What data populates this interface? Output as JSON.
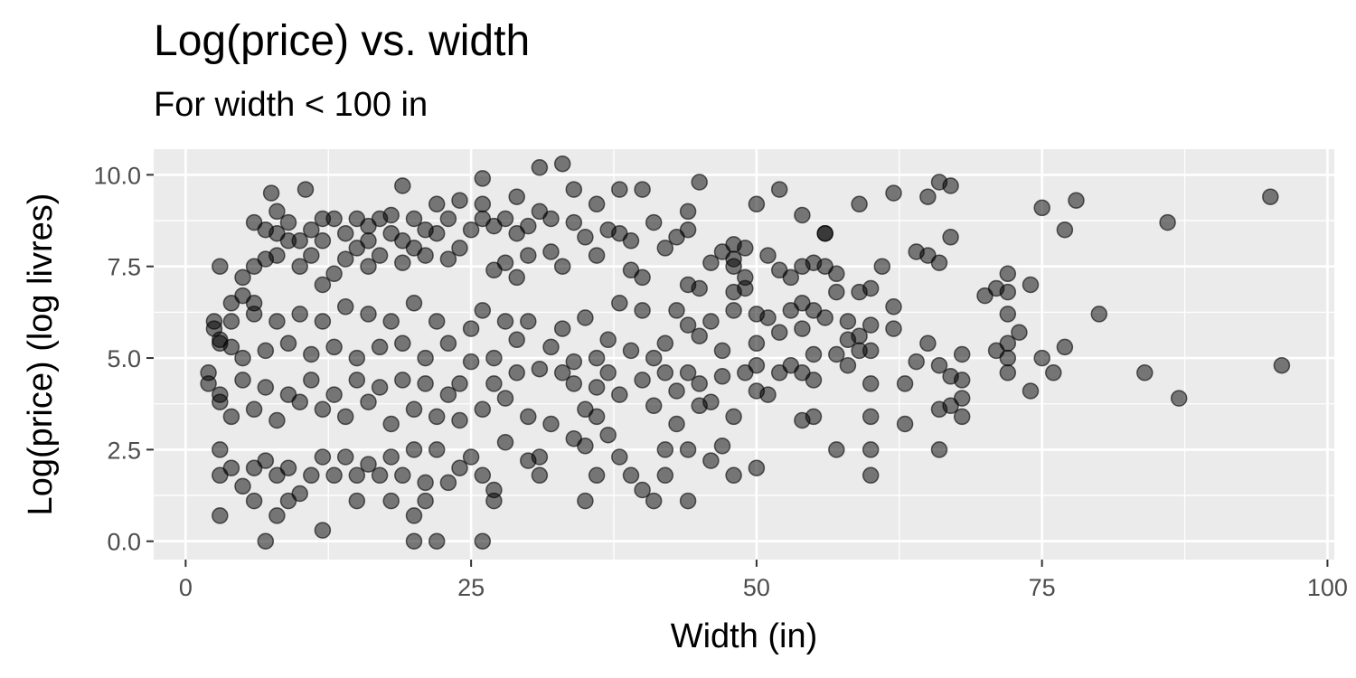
{
  "chart_data": {
    "type": "scatter",
    "title": "Log(price) vs. width",
    "subtitle": "For width < 100 in",
    "xlabel": "Width (in)",
    "ylabel": "Log(price) (log livres)",
    "xlim": [
      -2.8,
      100.6
    ],
    "ylim": [
      -0.5,
      10.7
    ],
    "x_ticks": [
      0,
      25,
      50,
      75,
      100
    ],
    "x_tick_labels": [
      "0",
      "25",
      "50",
      "75",
      "100"
    ],
    "y_ticks": [
      0.0,
      2.5,
      5.0,
      7.5,
      10.0
    ],
    "y_tick_labels": [
      "0.0",
      "2.5",
      "5.0",
      "7.5",
      "10.0"
    ],
    "grid": true,
    "panel_background": "#ebebeb",
    "grid_color": "#ffffff",
    "point_color": "#000000",
    "point_alpha": 0.5,
    "points": [
      [
        3,
        0.7
      ],
      [
        7,
        0.0
      ],
      [
        12,
        0.3
      ],
      [
        20,
        0.7
      ],
      [
        20,
        0.0
      ],
      [
        22,
        0.0
      ],
      [
        26,
        0.0
      ],
      [
        8,
        0.7
      ],
      [
        9,
        1.1
      ],
      [
        6,
        1.1
      ],
      [
        15,
        1.1
      ],
      [
        18,
        1.1
      ],
      [
        21,
        1.1
      ],
      [
        27,
        1.1
      ],
      [
        35,
        1.1
      ],
      [
        44,
        1.1
      ],
      [
        7.5,
        9.5
      ],
      [
        8,
        8.4
      ],
      [
        19,
        9.7
      ],
      [
        33,
        10.3
      ],
      [
        31,
        10.2
      ],
      [
        26,
        9.9
      ],
      [
        10.5,
        9.6
      ],
      [
        3,
        7.5
      ],
      [
        6,
        8.7
      ],
      [
        12,
        8.8
      ],
      [
        16,
        8.6
      ],
      [
        22,
        9.2
      ],
      [
        29,
        9.4
      ],
      [
        34,
        9.6
      ],
      [
        36,
        9.2
      ],
      [
        38,
        9.6
      ],
      [
        40,
        9.6
      ],
      [
        41,
        8.7
      ],
      [
        45,
        9.8
      ],
      [
        44,
        9.0
      ],
      [
        48,
        8.1
      ],
      [
        49,
        8.0
      ],
      [
        50,
        9.2
      ],
      [
        52,
        9.6
      ],
      [
        54,
        8.9
      ],
      [
        56,
        8.4
      ],
      [
        59,
        9.2
      ],
      [
        62,
        9.5
      ],
      [
        65,
        9.4
      ],
      [
        66,
        9.8
      ],
      [
        67,
        9.7
      ],
      [
        72,
        7.3
      ],
      [
        74,
        7.0
      ],
      [
        75,
        9.1
      ],
      [
        77,
        8.5
      ],
      [
        78,
        9.3
      ],
      [
        80,
        6.2
      ],
      [
        86,
        8.7
      ],
      [
        95,
        9.4
      ],
      [
        84,
        4.6
      ],
      [
        87,
        3.9
      ],
      [
        96,
        4.8
      ],
      [
        72,
        4.6
      ],
      [
        74,
        4.1
      ],
      [
        75,
        5.0
      ],
      [
        76,
        4.6
      ],
      [
        77,
        5.3
      ],
      [
        71,
        5.2
      ],
      [
        70,
        6.7
      ],
      [
        68,
        5.1
      ],
      [
        67,
        4.5
      ],
      [
        66,
        3.6
      ],
      [
        66,
        2.5
      ],
      [
        63,
        3.2
      ],
      [
        63,
        4.3
      ],
      [
        60,
        4.3
      ],
      [
        60,
        1.8
      ],
      [
        60,
        2.5
      ],
      [
        60,
        3.4
      ],
      [
        58,
        4.8
      ],
      [
        57,
        6.8
      ],
      [
        57,
        2.5
      ],
      [
        58,
        6.0
      ],
      [
        59,
        5.2
      ],
      [
        56,
        8.4
      ],
      [
        55,
        6.3
      ],
      [
        54,
        3.3
      ],
      [
        55,
        3.4
      ],
      [
        54,
        4.6
      ],
      [
        53,
        4.8
      ],
      [
        52,
        5.7
      ],
      [
        51,
        6.1
      ],
      [
        50,
        2.0
      ],
      [
        48,
        1.8
      ],
      [
        50,
        4.1
      ],
      [
        46,
        2.2
      ],
      [
        47,
        2.6
      ],
      [
        44,
        2.5
      ],
      [
        43,
        3.2
      ],
      [
        42,
        2.5
      ],
      [
        42,
        1.8
      ],
      [
        45,
        3.7
      ],
      [
        41,
        1.1
      ],
      [
        40,
        1.4
      ],
      [
        39,
        1.8
      ],
      [
        38,
        2.3
      ],
      [
        37,
        2.9
      ],
      [
        36,
        1.8
      ],
      [
        35,
        2.6
      ],
      [
        34,
        2.8
      ],
      [
        31,
        2.3
      ],
      [
        31,
        1.8
      ],
      [
        30,
        2.2
      ],
      [
        28,
        2.7
      ],
      [
        27,
        1.4
      ],
      [
        26,
        1.8
      ],
      [
        25,
        2.3
      ],
      [
        24,
        2.0
      ],
      [
        23,
        1.6
      ],
      [
        22,
        2.5
      ],
      [
        21,
        1.6
      ],
      [
        20,
        2.5
      ],
      [
        19,
        1.8
      ],
      [
        18,
        2.3
      ],
      [
        17,
        1.8
      ],
      [
        16,
        2.1
      ],
      [
        15,
        1.8
      ],
      [
        14,
        2.3
      ],
      [
        13,
        1.8
      ],
      [
        12,
        2.3
      ],
      [
        11,
        1.8
      ],
      [
        10,
        1.3
      ],
      [
        9,
        2.0
      ],
      [
        8,
        1.8
      ],
      [
        7,
        2.2
      ],
      [
        6,
        2.0
      ],
      [
        5,
        1.5
      ],
      [
        4,
        2.0
      ],
      [
        3,
        1.8
      ],
      [
        3,
        2.5
      ],
      [
        2,
        4.3
      ],
      [
        2,
        4.6
      ],
      [
        2.5,
        6.0
      ],
      [
        3,
        5.5
      ],
      [
        2.5,
        5.8
      ],
      [
        4,
        5.3
      ],
      [
        3,
        3.8
      ],
      [
        4,
        6.5
      ],
      [
        5,
        6.7
      ],
      [
        5,
        7.2
      ],
      [
        6,
        6.5
      ],
      [
        6,
        7.5
      ],
      [
        7,
        7.7
      ],
      [
        7,
        8.5
      ],
      [
        8,
        7.8
      ],
      [
        8,
        9.0
      ],
      [
        9,
        8.2
      ],
      [
        9,
        8.7
      ],
      [
        10,
        7.5
      ],
      [
        10,
        8.2
      ],
      [
        11,
        8.5
      ],
      [
        11,
        7.8
      ],
      [
        12,
        7.0
      ],
      [
        12,
        8.2
      ],
      [
        13,
        8.8
      ],
      [
        13,
        7.3
      ],
      [
        14,
        8.4
      ],
      [
        14,
        7.7
      ],
      [
        15,
        8.0
      ],
      [
        15,
        8.8
      ],
      [
        16,
        7.5
      ],
      [
        16,
        8.2
      ],
      [
        17,
        8.8
      ],
      [
        17,
        7.8
      ],
      [
        18,
        8.4
      ],
      [
        18,
        8.9
      ],
      [
        19,
        7.6
      ],
      [
        19,
        8.2
      ],
      [
        20,
        8.0
      ],
      [
        20,
        8.8
      ],
      [
        21,
        7.8
      ],
      [
        21,
        8.5
      ],
      [
        22,
        8.4
      ],
      [
        23,
        7.7
      ],
      [
        23,
        8.8
      ],
      [
        24,
        8.0
      ],
      [
        24,
        9.3
      ],
      [
        25,
        8.5
      ],
      [
        26,
        8.8
      ],
      [
        26,
        9.2
      ],
      [
        27,
        7.4
      ],
      [
        27,
        8.6
      ],
      [
        28,
        8.8
      ],
      [
        28,
        7.6
      ],
      [
        29,
        8.4
      ],
      [
        29,
        7.2
      ],
      [
        30,
        8.6
      ],
      [
        30,
        7.8
      ],
      [
        31,
        9.0
      ],
      [
        32,
        7.9
      ],
      [
        32,
        8.8
      ],
      [
        33,
        7.5
      ],
      [
        34,
        8.7
      ],
      [
        35,
        8.3
      ],
      [
        36,
        7.8
      ],
      [
        37,
        8.5
      ],
      [
        38,
        8.4
      ],
      [
        39,
        8.2
      ],
      [
        39,
        7.4
      ],
      [
        40,
        7.2
      ],
      [
        42,
        8.0
      ],
      [
        43,
        8.3
      ],
      [
        44,
        8.5
      ],
      [
        45,
        6.9
      ],
      [
        46,
        7.6
      ],
      [
        47,
        7.9
      ],
      [
        48,
        7.5
      ],
      [
        49,
        7.2
      ],
      [
        51,
        7.8
      ],
      [
        52,
        7.4
      ],
      [
        53,
        7.2
      ],
      [
        54,
        7.5
      ],
      [
        55,
        7.6
      ],
      [
        56,
        7.5
      ],
      [
        57,
        7.3
      ],
      [
        59,
        6.8
      ],
      [
        60,
        6.9
      ],
      [
        61,
        7.5
      ],
      [
        62,
        6.4
      ],
      [
        64,
        7.9
      ],
      [
        65,
        7.8
      ],
      [
        66,
        7.6
      ],
      [
        67,
        8.3
      ],
      [
        71,
        6.9
      ],
      [
        72,
        6.8
      ],
      [
        73,
        5.7
      ],
      [
        72,
        6.2
      ],
      [
        72,
        5.4
      ],
      [
        72,
        5.0
      ],
      [
        68,
        3.9
      ],
      [
        68,
        4.4
      ],
      [
        67,
        3.7
      ],
      [
        68,
        3.4
      ],
      [
        66,
        4.8
      ],
      [
        65,
        5.4
      ],
      [
        64,
        4.9
      ],
      [
        62,
        5.8
      ],
      [
        60,
        5.9
      ],
      [
        60,
        5.2
      ],
      [
        59,
        5.6
      ],
      [
        58,
        5.5
      ],
      [
        57,
        5.1
      ],
      [
        56,
        6.1
      ],
      [
        55,
        4.4
      ],
      [
        55,
        5.1
      ],
      [
        54,
        5.8
      ],
      [
        54,
        6.5
      ],
      [
        53,
        6.3
      ],
      [
        52,
        4.6
      ],
      [
        51,
        4.0
      ],
      [
        50,
        4.8
      ],
      [
        50,
        5.4
      ],
      [
        50,
        6.2
      ],
      [
        49,
        4.6
      ],
      [
        49,
        6.9
      ],
      [
        48,
        3.4
      ],
      [
        48,
        6.3
      ],
      [
        48,
        7.7
      ],
      [
        48,
        6.8
      ],
      [
        47,
        5.2
      ],
      [
        47,
        4.5
      ],
      [
        46,
        3.8
      ],
      [
        46,
        6.0
      ],
      [
        45,
        5.6
      ],
      [
        45,
        4.3
      ],
      [
        44,
        4.6
      ],
      [
        44,
        5.9
      ],
      [
        44,
        7.0
      ],
      [
        43,
        6.3
      ],
      [
        43,
        4.1
      ],
      [
        42,
        5.4
      ],
      [
        42,
        4.6
      ],
      [
        41,
        5.0
      ],
      [
        41,
        3.7
      ],
      [
        40,
        6.3
      ],
      [
        40,
        4.4
      ],
      [
        39,
        5.2
      ],
      [
        38,
        6.5
      ],
      [
        38,
        4.0
      ],
      [
        37,
        5.5
      ],
      [
        37,
        4.6
      ],
      [
        36,
        5.0
      ],
      [
        36,
        3.4
      ],
      [
        36,
        4.2
      ],
      [
        35,
        6.1
      ],
      [
        35,
        3.6
      ],
      [
        34,
        4.9
      ],
      [
        34,
        4.3
      ],
      [
        33,
        5.8
      ],
      [
        33,
        4.6
      ],
      [
        32,
        5.3
      ],
      [
        32,
        3.2
      ],
      [
        31,
        4.7
      ],
      [
        30,
        6.0
      ],
      [
        30,
        3.4
      ],
      [
        29,
        4.6
      ],
      [
        29,
        5.5
      ],
      [
        28,
        3.9
      ],
      [
        28,
        6.0
      ],
      [
        27,
        5.0
      ],
      [
        27,
        4.3
      ],
      [
        26,
        6.3
      ],
      [
        26,
        3.6
      ],
      [
        25,
        4.9
      ],
      [
        25,
        5.8
      ],
      [
        24,
        4.3
      ],
      [
        24,
        3.3
      ],
      [
        23,
        5.4
      ],
      [
        23,
        4.0
      ],
      [
        22,
        6.0
      ],
      [
        22,
        3.4
      ],
      [
        21,
        5.0
      ],
      [
        21,
        4.3
      ],
      [
        20,
        6.5
      ],
      [
        20,
        3.6
      ],
      [
        19,
        5.4
      ],
      [
        19,
        4.4
      ],
      [
        18,
        6.0
      ],
      [
        18,
        3.2
      ],
      [
        17,
        5.3
      ],
      [
        17,
        4.2
      ],
      [
        16,
        6.2
      ],
      [
        16,
        3.8
      ],
      [
        15,
        5.0
      ],
      [
        15,
        4.4
      ],
      [
        14,
        6.4
      ],
      [
        14,
        3.4
      ],
      [
        13,
        5.3
      ],
      [
        13,
        4.0
      ],
      [
        12,
        6.0
      ],
      [
        12,
        3.6
      ],
      [
        11,
        5.1
      ],
      [
        11,
        4.4
      ],
      [
        10,
        6.2
      ],
      [
        10,
        3.8
      ],
      [
        9,
        5.4
      ],
      [
        9,
        4.0
      ],
      [
        8,
        6.0
      ],
      [
        8,
        3.3
      ],
      [
        7,
        5.2
      ],
      [
        7,
        4.2
      ],
      [
        6,
        6.2
      ],
      [
        6,
        3.6
      ],
      [
        5,
        5.0
      ],
      [
        5,
        4.4
      ],
      [
        4,
        6.0
      ],
      [
        4,
        3.4
      ],
      [
        3,
        5.4
      ],
      [
        3,
        4.0
      ]
    ]
  }
}
